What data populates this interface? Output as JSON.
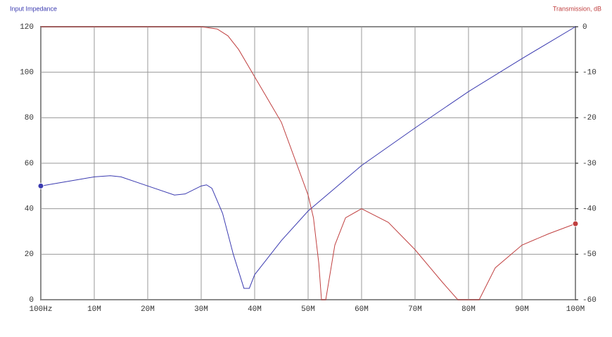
{
  "chart_data": {
    "type": "line",
    "xlim": [
      0.0001,
      100
    ],
    "xticks": [
      {
        "value": 0.0001,
        "label": "100Hz"
      },
      {
        "value": 10,
        "label": "10M"
      },
      {
        "value": 20,
        "label": "20M"
      },
      {
        "value": 30,
        "label": "30M"
      },
      {
        "value": 40,
        "label": "40M"
      },
      {
        "value": 50,
        "label": "50M"
      },
      {
        "value": 60,
        "label": "60M"
      },
      {
        "value": 70,
        "label": "70M"
      },
      {
        "value": 80,
        "label": "80M"
      },
      {
        "value": 90,
        "label": "90M"
      },
      {
        "value": 100,
        "label": "100M"
      }
    ],
    "ylim": [
      0,
      120
    ],
    "yticks": [
      0,
      20,
      40,
      60,
      80,
      100,
      120
    ],
    "y2lim": [
      -60,
      0
    ],
    "y2ticks": [
      0,
      -10,
      -20,
      -30,
      -40,
      -50,
      -60
    ],
    "grid": true,
    "series": [
      {
        "name": "Input Impedance",
        "color": "#3a3ab0",
        "axis": "y",
        "x": [
          0.0001,
          5,
          10,
          13,
          15,
          20,
          25,
          27,
          30,
          31,
          32,
          34,
          36,
          38,
          39,
          40,
          45,
          50,
          55,
          60,
          70,
          80,
          90,
          100
        ],
        "values": [
          50,
          52,
          54,
          54.5,
          54,
          50,
          46,
          46.5,
          50,
          50.5,
          49,
          38,
          20,
          5,
          5,
          11,
          26,
          39,
          49,
          59,
          75.5,
          91.5,
          106,
          120
        ]
      },
      {
        "name": "Transmission, dB",
        "color": "#c04040",
        "axis": "y2",
        "x": [
          0.0001,
          10,
          20,
          30,
          33,
          35,
          37,
          40,
          45,
          50,
          51,
          52,
          52.5,
          53.3,
          55,
          57,
          60,
          65,
          70,
          75,
          78,
          82,
          85,
          90,
          95,
          100
        ],
        "values": [
          0,
          0,
          0,
          0,
          -0.5,
          -2,
          -5,
          -11,
          -21,
          -37,
          -42,
          -52,
          -60,
          -60,
          -48,
          -42,
          -40,
          -43,
          -49,
          -56,
          -60,
          -60,
          -53,
          -48,
          -45.5,
          -43.3
        ]
      }
    ]
  }
}
